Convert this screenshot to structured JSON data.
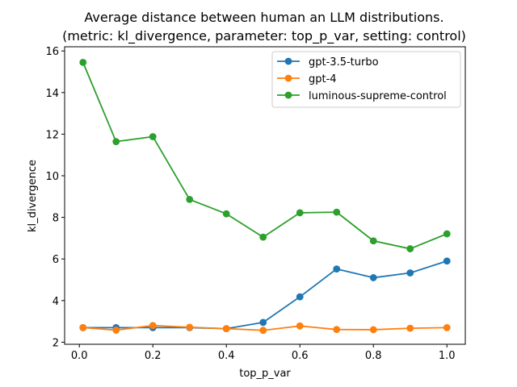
{
  "chart_data": {
    "type": "line",
    "title": "Average distance between human an LLM distributions.",
    "subtitle": "(metric: kl_divergence, parameter: top_p_var, setting: control)",
    "xlabel": "top_p_var",
    "ylabel": "kl_divergence",
    "xlim": [
      -0.04,
      1.05
    ],
    "ylim": [
      1.9,
      16.2
    ],
    "x_ticks": [
      0.0,
      0.2,
      0.4,
      0.6,
      0.8,
      1.0
    ],
    "x_tick_labels": [
      "0.0",
      "0.2",
      "0.4",
      "0.6",
      "0.8",
      "1.0"
    ],
    "y_ticks": [
      2,
      4,
      6,
      8,
      10,
      12,
      14,
      16
    ],
    "y_tick_labels": [
      "2",
      "4",
      "6",
      "8",
      "10",
      "12",
      "14",
      "16"
    ],
    "grid": false,
    "legend_position": "top-right",
    "x": [
      0.01,
      0.1,
      0.2,
      0.3,
      0.4,
      0.5,
      0.6,
      0.7,
      0.8,
      0.9,
      1.0
    ],
    "series": [
      {
        "name": "gpt-3.5-turbo",
        "color": "#1f77b4",
        "values": [
          2.7,
          2.7,
          2.7,
          2.7,
          2.65,
          2.95,
          4.18,
          5.52,
          5.1,
          5.33,
          5.9
        ]
      },
      {
        "name": "gpt-4",
        "color": "#ff7f0e",
        "values": [
          2.7,
          2.58,
          2.8,
          2.72,
          2.65,
          2.57,
          2.78,
          2.61,
          2.6,
          2.67,
          2.7
        ]
      },
      {
        "name": "luminous-supreme-control",
        "color": "#2ca02c",
        "values": [
          15.45,
          11.64,
          11.88,
          8.86,
          8.17,
          7.05,
          8.22,
          8.25,
          6.87,
          6.49,
          7.21
        ]
      }
    ]
  }
}
